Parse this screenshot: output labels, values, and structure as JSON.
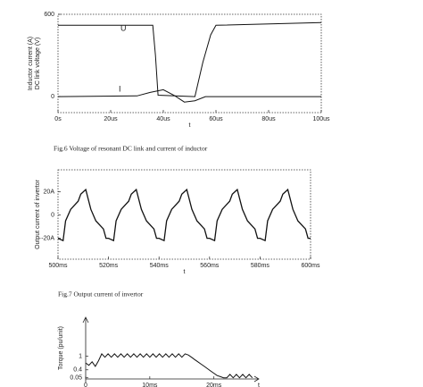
{
  "chart_data": [
    {
      "type": "line",
      "caption": "Fig.6    Voltage of resonant DC link and current of inductor",
      "ylabels": [
        "Inductor current (A)",
        "DC link voltage (V)"
      ],
      "xlabel": "t",
      "xlim": [
        0,
        100
      ],
      "ylim": [
        -117,
        600
      ],
      "xticks": [
        {
          "value": 0,
          "label": "0s"
        },
        {
          "value": 20,
          "label": "20us"
        },
        {
          "value": 40,
          "label": "40us"
        },
        {
          "value": 60,
          "label": "60us"
        },
        {
          "value": 80,
          "label": "80us"
        },
        {
          "value": 100,
          "label": "100us"
        }
      ],
      "yticks": [
        600,
        0
      ],
      "series": [
        {
          "name": "U",
          "color": "#111111",
          "x": [
            0,
            36,
            37,
            38,
            52,
            55,
            58,
            60,
            100
          ],
          "values": [
            520,
            520,
            300,
            10,
            0,
            250,
            450,
            520,
            540
          ]
        },
        {
          "name": "I",
          "color": "#111111",
          "x": [
            0,
            30,
            35,
            40,
            44,
            48,
            52,
            56,
            100
          ],
          "values": [
            0,
            5,
            30,
            50,
            10,
            -40,
            -30,
            0,
            0
          ]
        }
      ]
    },
    {
      "type": "line",
      "caption": "Fig.7    Output current of invertor",
      "ylabels": [
        "Output current of invertor"
      ],
      "xlabel": "t",
      "xlim": [
        500,
        600
      ],
      "ylim": [
        -38,
        39
      ],
      "xticks": [
        {
          "value": 500,
          "label": "500ms"
        },
        {
          "value": 520,
          "label": "520ms"
        },
        {
          "value": 540,
          "label": "540ms"
        },
        {
          "value": 560,
          "label": "560ms"
        },
        {
          "value": 580,
          "label": "580ms"
        },
        {
          "value": 600,
          "label": "600ms"
        }
      ],
      "yticks": [
        {
          "value": 20,
          "label": "20A"
        },
        0,
        {
          "value": -20,
          "label": "-20A"
        }
      ],
      "series": [
        {
          "color": "#111111",
          "x": [
            500,
            502,
            503,
            505,
            508,
            509,
            511,
            513,
            515,
            518,
            519,
            520,
            522,
            523,
            525,
            528,
            529,
            531,
            533,
            535,
            538,
            539,
            540,
            542,
            543,
            545,
            548,
            549,
            551,
            553,
            555,
            558,
            559,
            560,
            562,
            563,
            565,
            568,
            569,
            571,
            573,
            575,
            578,
            579,
            580,
            582,
            583,
            585,
            588,
            589,
            591,
            593,
            595,
            598,
            599,
            600
          ],
          "values": [
            -20,
            -22,
            -5,
            5,
            12,
            18,
            22,
            5,
            -5,
            -12,
            -20,
            -20,
            -22,
            -5,
            5,
            12,
            18,
            22,
            5,
            -5,
            -12,
            -20,
            -20,
            -22,
            -5,
            5,
            12,
            18,
            22,
            5,
            -5,
            -12,
            -20,
            -20,
            -22,
            -5,
            5,
            12,
            18,
            22,
            5,
            -5,
            -12,
            -20,
            -20,
            -22,
            -5,
            5,
            12,
            18,
            22,
            5,
            -5,
            -12,
            -20,
            -20
          ]
        }
      ]
    },
    {
      "type": "line",
      "ylabels": [
        "Torque (pu/unit)"
      ],
      "xlabel": "t",
      "xlim": [
        0,
        27
      ],
      "ylim": [
        0,
        2.7
      ],
      "xticks": [
        0,
        {
          "value": 10,
          "label": "10ms"
        },
        {
          "value": 20,
          "label": "20ms"
        }
      ],
      "yticks": [
        1,
        0.4,
        0.05
      ],
      "series": [
        {
          "color": "#111111",
          "x": [
            0,
            0.5,
            1,
            1.5,
            2,
            2.5,
            3,
            3.5,
            4,
            4.5,
            5,
            5.5,
            6,
            6.5,
            7,
            7.5,
            8,
            8.5,
            9,
            9.5,
            10,
            10.5,
            11,
            11.5,
            12,
            12.5,
            13,
            13.5,
            14,
            14.5,
            15,
            15.5,
            16,
            16.5,
            17,
            17.5,
            18,
            18.5,
            19,
            19.5,
            20,
            20.5,
            21,
            21.5,
            22,
            22.5,
            23,
            23.5,
            24,
            24.5,
            25,
            25.5,
            26
          ],
          "values": [
            0.7,
            0.6,
            0.75,
            0.55,
            0.8,
            1.1,
            0.95,
            1.1,
            0.95,
            1.1,
            0.95,
            1.1,
            0.95,
            1.1,
            0.95,
            1.1,
            0.95,
            1.1,
            0.95,
            1.1,
            0.95,
            1.1,
            0.95,
            1.1,
            0.95,
            1.1,
            0.95,
            1.1,
            0.95,
            1.1,
            0.95,
            1.1,
            1.05,
            0.95,
            0.85,
            0.75,
            0.65,
            0.55,
            0.45,
            0.35,
            0.25,
            0.15,
            0.1,
            0.05,
            0.05,
            0.2,
            0.05,
            0.2,
            0.05,
            0.2,
            0.05,
            0.2,
            0.05
          ]
        }
      ]
    }
  ]
}
